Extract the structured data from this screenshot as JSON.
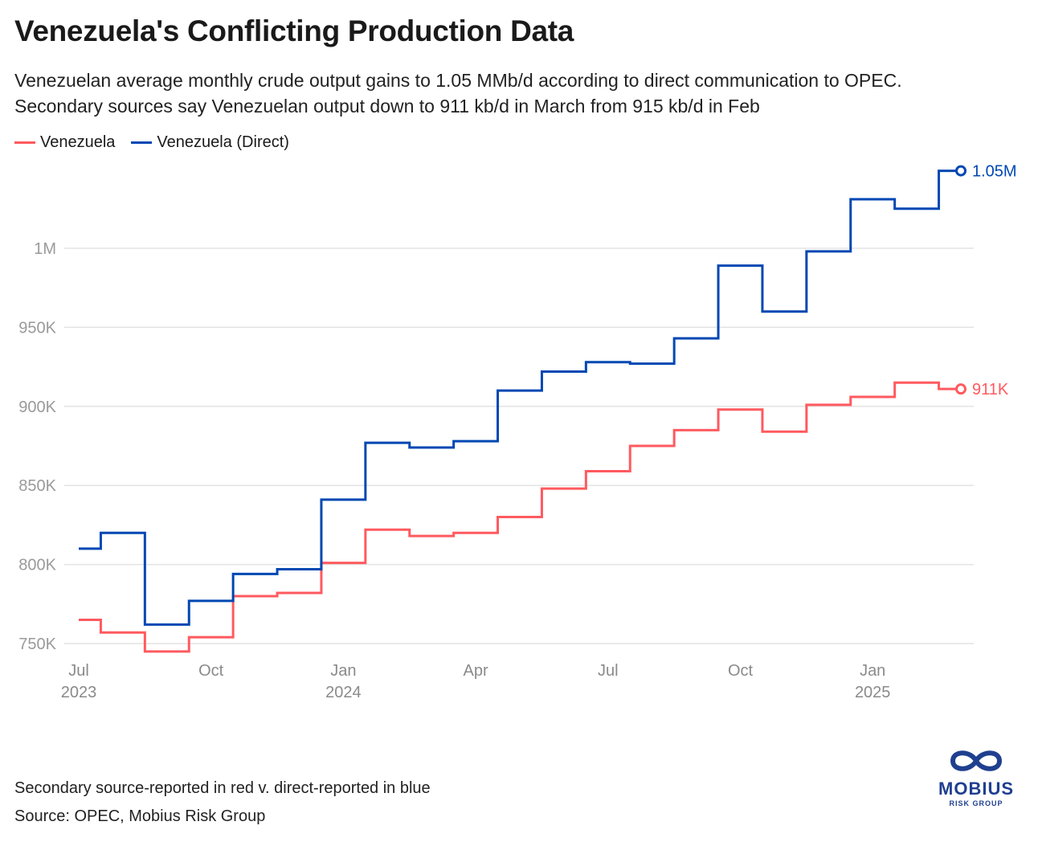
{
  "title": "Venezuela's Conflicting Production Data",
  "subtitle": [
    "Venezuelan average monthly crude output gains to 1.05 MMb/d according to direct communication to OPEC.",
    "Secondary sources say Venezuelan output down to 911 kb/d in March from 915 kb/d in Feb"
  ],
  "footer": {
    "note": "Secondary source-reported in red v. direct-reported in blue",
    "source": "Source: OPEC, Mobius Risk Group"
  },
  "logo": {
    "name": "MOBIUS",
    "tagline": "RISK GROUP"
  },
  "chart_data": {
    "type": "line",
    "step": "middle",
    "x": [
      "2023-07",
      "2023-08",
      "2023-09",
      "2023-10",
      "2023-11",
      "2023-12",
      "2024-01",
      "2024-02",
      "2024-03",
      "2024-04",
      "2024-05",
      "2024-06",
      "2024-07",
      "2024-08",
      "2024-09",
      "2024-10",
      "2024-11",
      "2024-12",
      "2025-01",
      "2025-02",
      "2025-03"
    ],
    "series": [
      {
        "name": "Venezuela",
        "color": "#ff5a5f",
        "end_label": "911K",
        "values": [
          765,
          757,
          745,
          754,
          780,
          782,
          801,
          822,
          818,
          820,
          830,
          848,
          859,
          875,
          885,
          898,
          884,
          901,
          906,
          915,
          911
        ]
      },
      {
        "name": "Venezuela (Direct)",
        "color": "#0047b3",
        "end_label": "1.05M",
        "values": [
          810,
          820,
          762,
          777,
          794,
          797,
          841,
          877,
          874,
          878,
          910,
          922,
          928,
          927,
          943,
          989,
          960,
          998,
          1031,
          1025,
          1049
        ]
      }
    ],
    "y_ticks": [
      {
        "v": 750,
        "label": "750K"
      },
      {
        "v": 800,
        "label": "800K"
      },
      {
        "v": 850,
        "label": "850K"
      },
      {
        "v": 900,
        "label": "900K"
      },
      {
        "v": 950,
        "label": "950K"
      },
      {
        "v": 1000,
        "label": "1M"
      }
    ],
    "x_ticks": [
      {
        "i": 0,
        "label": "Jul",
        "year": "2023"
      },
      {
        "i": 3,
        "label": "Oct",
        "year": ""
      },
      {
        "i": 6,
        "label": "Jan",
        "year": "2024"
      },
      {
        "i": 9,
        "label": "Apr",
        "year": ""
      },
      {
        "i": 12,
        "label": "Jul",
        "year": ""
      },
      {
        "i": 15,
        "label": "Oct",
        "year": ""
      },
      {
        "i": 18,
        "label": "Jan",
        "year": "2025"
      }
    ],
    "y_unit": "kb/d",
    "ylim": [
      750,
      1050
    ],
    "grid": true,
    "legend": "top-left"
  }
}
